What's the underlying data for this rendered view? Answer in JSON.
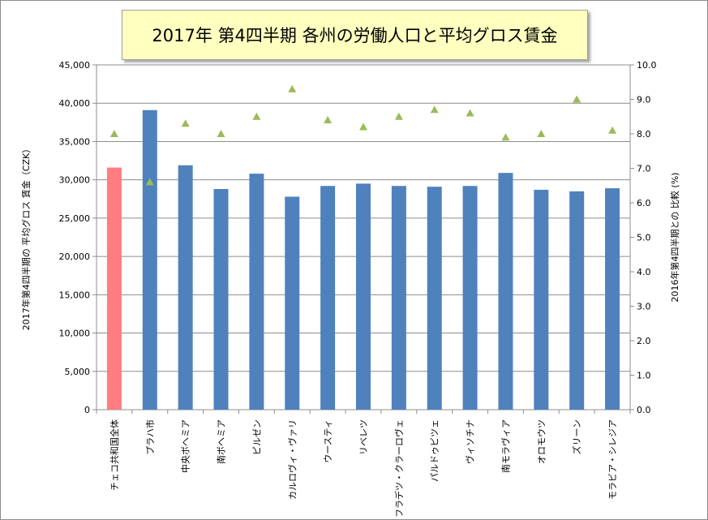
{
  "chart_data": {
    "type": "bar",
    "title": "2017年 第4四半期 各州の労働人口と平均グロス賃金",
    "ylabel": "2017年第4四半期の 平均グロス 賃金（CZK）",
    "y2label": "2016年第4四半期との 比較 (%)",
    "ylim": [
      0,
      45000
    ],
    "y2lim": [
      0.0,
      10.0
    ],
    "yticks": [
      "0",
      "5,000",
      "10,000",
      "15,000",
      "20,000",
      "25,000",
      "30,000",
      "35,000",
      "40,000",
      "45,000"
    ],
    "y2ticks": [
      "0.0",
      "1.0",
      "2.0",
      "3.0",
      "4.0",
      "5.0",
      "6.0",
      "7.0",
      "8.0",
      "9.0",
      "10.0"
    ],
    "grid": true,
    "categories": [
      "チェコ共和国全体",
      "プラハ市",
      "中央ボヘミア",
      "南ボヘミア",
      "ピルゼン",
      "カルロヴィ・ヴァリ",
      "ウースティ",
      "リベレツ",
      "フラデツ・クラーロヴェ",
      "パルドゥビツェ",
      "ヴィソチナ",
      "南モラヴィア",
      "オロモウツ",
      "ズリーン",
      "モラビア・シレジア"
    ],
    "series": [
      {
        "type": "bar",
        "axis": "left",
        "values": [
          31600,
          39100,
          31900,
          28800,
          30800,
          27800,
          29200,
          29500,
          29200,
          29100,
          29200,
          30900,
          28700,
          28500,
          28900
        ],
        "colors": [
          "#ff7c80",
          "#4f81bd",
          "#4f81bd",
          "#4f81bd",
          "#4f81bd",
          "#4f81bd",
          "#4f81bd",
          "#4f81bd",
          "#4f81bd",
          "#4f81bd",
          "#4f81bd",
          "#4f81bd",
          "#4f81bd",
          "#4f81bd",
          "#4f81bd"
        ]
      },
      {
        "type": "scatter",
        "axis": "right",
        "marker": "triangle",
        "color": "#9bbb59",
        "values": [
          8.0,
          6.6,
          8.3,
          8.0,
          8.5,
          9.3,
          8.4,
          8.2,
          8.5,
          8.7,
          8.6,
          7.9,
          8.0,
          9.0,
          8.1
        ]
      }
    ]
  }
}
